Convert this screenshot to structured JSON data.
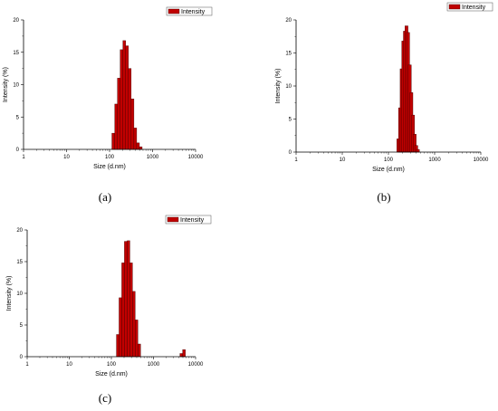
{
  "colors": {
    "bar_fill": "#c00000",
    "bar_stroke": "#400000",
    "axis": "#000000"
  },
  "chart_data": [
    {
      "type": "bar",
      "panel_label": "(a)",
      "xlabel": "Size (d.nm)",
      "ylabel": "Intensity (%)",
      "x_scale": "log",
      "xlim": [
        1,
        10000
      ],
      "ylim": [
        0,
        20
      ],
      "x_ticks": [
        "1",
        "10",
        "100",
        "1000",
        "10000"
      ],
      "y_ticks": [
        "0",
        "5",
        "10",
        "15",
        "20"
      ],
      "legend": {
        "label": "Intensity",
        "position": "top-right"
      },
      "grid": false,
      "bins": [
        {
          "size": 122,
          "intensity": 2.5
        },
        {
          "size": 142,
          "intensity": 7.0
        },
        {
          "size": 164,
          "intensity": 11.0
        },
        {
          "size": 190,
          "intensity": 15.4
        },
        {
          "size": 220,
          "intensity": 16.8
        },
        {
          "size": 255,
          "intensity": 16.0
        },
        {
          "size": 295,
          "intensity": 12.5
        },
        {
          "size": 342,
          "intensity": 7.8
        },
        {
          "size": 396,
          "intensity": 3.3
        },
        {
          "size": 459,
          "intensity": 1.0
        },
        {
          "size": 531,
          "intensity": 0.4
        }
      ]
    },
    {
      "type": "bar",
      "panel_label": "(b)",
      "xlabel": "Size (d.nm)",
      "ylabel": "Intensity (%)",
      "x_scale": "log",
      "xlim": [
        1,
        10000
      ],
      "ylim": [
        0,
        20
      ],
      "x_ticks": [
        "1",
        "10",
        "100",
        "1000",
        "10000"
      ],
      "y_ticks": [
        "0",
        "5",
        "10",
        "15",
        "20"
      ],
      "legend": {
        "label": "Intensity",
        "position": "top-right"
      },
      "grid": false,
      "bins": [
        {
          "size": 164,
          "intensity": 2.0
        },
        {
          "size": 178,
          "intensity": 6.7
        },
        {
          "size": 193,
          "intensity": 12.6
        },
        {
          "size": 209,
          "intensity": 16.8
        },
        {
          "size": 227,
          "intensity": 18.3
        },
        {
          "size": 246,
          "intensity": 19.1
        },
        {
          "size": 267,
          "intensity": 18.1
        },
        {
          "size": 290,
          "intensity": 13.2
        },
        {
          "size": 314,
          "intensity": 9.0
        },
        {
          "size": 341,
          "intensity": 5.6
        },
        {
          "size": 370,
          "intensity": 2.7
        },
        {
          "size": 401,
          "intensity": 1.0
        },
        {
          "size": 435,
          "intensity": 0.4
        }
      ]
    },
    {
      "type": "bar",
      "panel_label": "(c)",
      "xlabel": "Size (d.nm)",
      "ylabel": "Intensity (%)",
      "x_scale": "log",
      "xlim": [
        1,
        10000
      ],
      "ylim": [
        0,
        20
      ],
      "x_ticks": [
        "1",
        "10",
        "100",
        "1000",
        "10000"
      ],
      "y_ticks": [
        "0",
        "5",
        "10",
        "15",
        "20"
      ],
      "legend": {
        "label": "Intensity",
        "position": "top-right"
      },
      "grid": false,
      "bins": [
        {
          "size": 142,
          "intensity": 3.5
        },
        {
          "size": 164,
          "intensity": 9.3
        },
        {
          "size": 190,
          "intensity": 14.8
        },
        {
          "size": 220,
          "intensity": 18.2
        },
        {
          "size": 255,
          "intensity": 18.3
        },
        {
          "size": 295,
          "intensity": 14.8
        },
        {
          "size": 342,
          "intensity": 10.3
        },
        {
          "size": 396,
          "intensity": 5.8
        },
        {
          "size": 459,
          "intensity": 2.0
        },
        {
          "size": 4580,
          "intensity": 0.5
        },
        {
          "size": 5300,
          "intensity": 1.1
        }
      ]
    }
  ]
}
